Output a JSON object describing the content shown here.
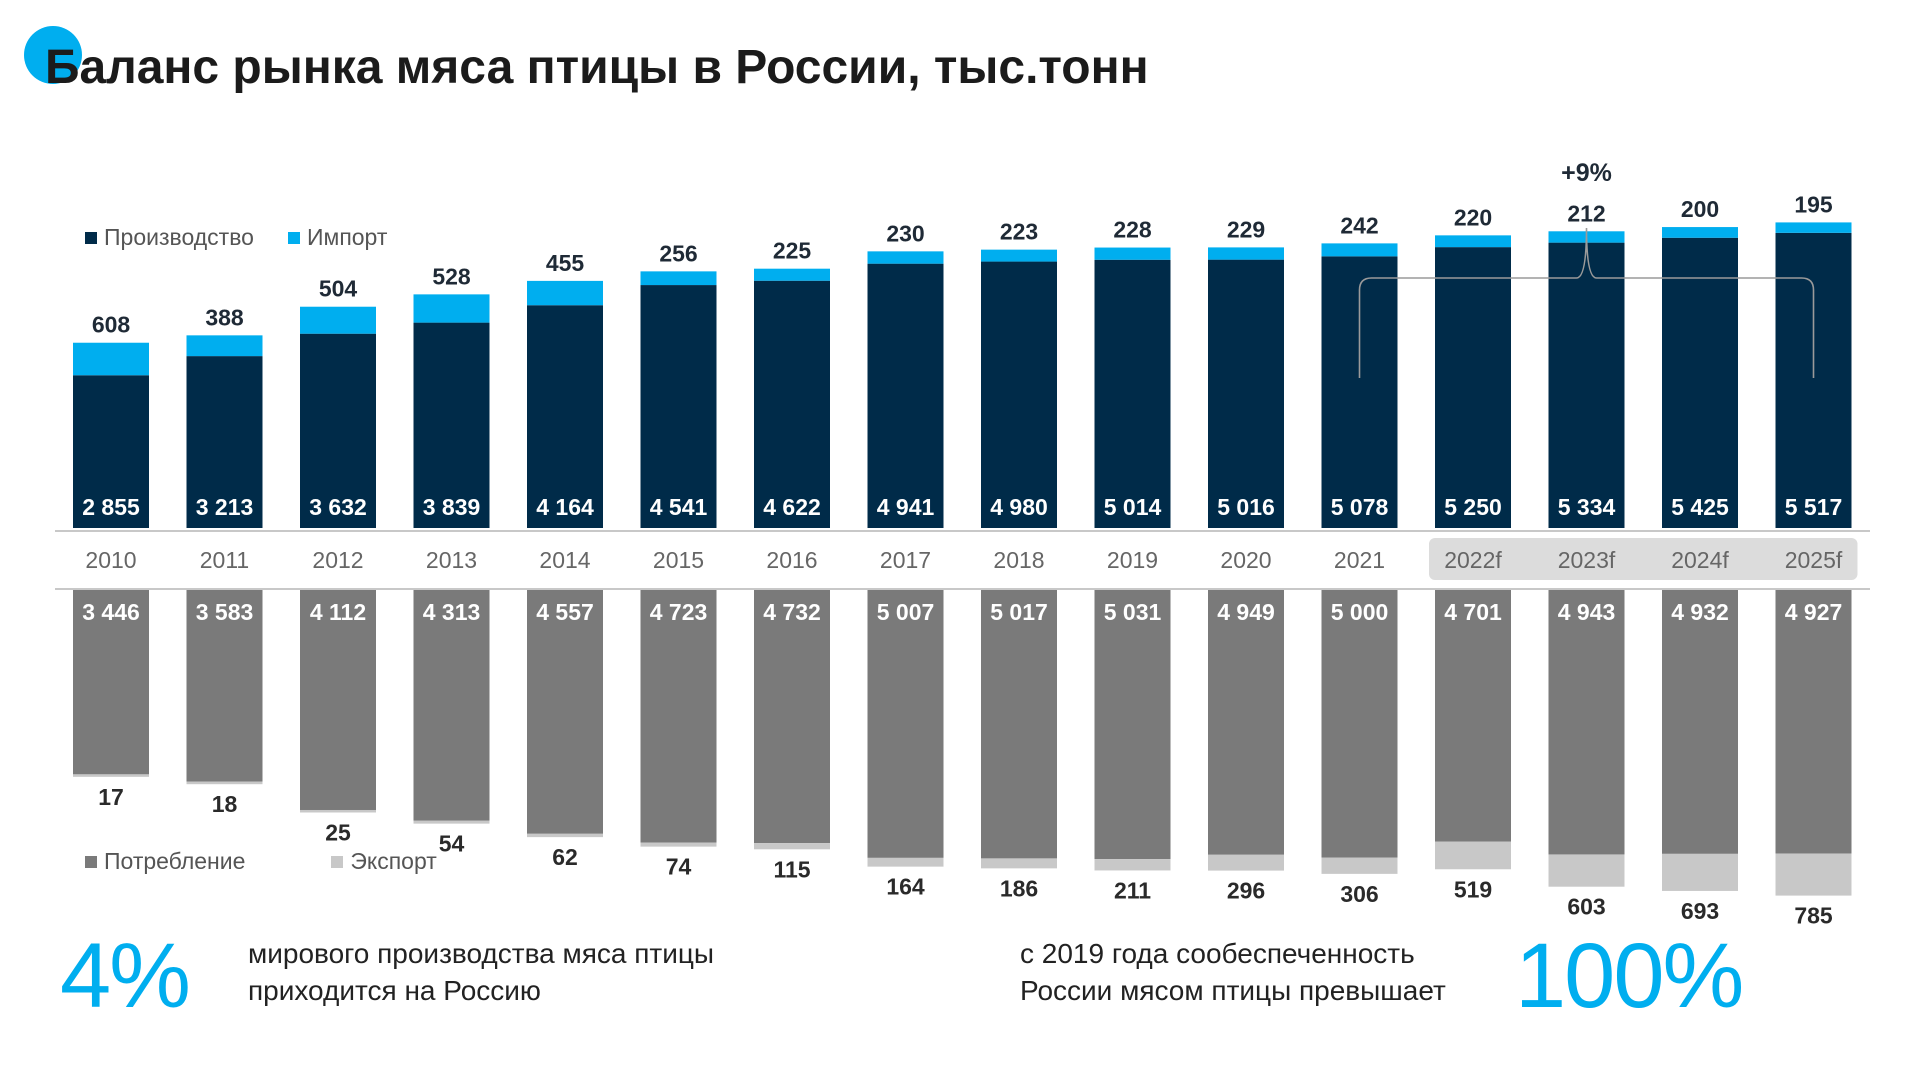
{
  "title": "Баланс рынка мяса птицы в России, тыс.тонн",
  "colors": {
    "production": "#002B49",
    "import": "#00AEEF",
    "consumption": "#7A7A7A",
    "export": "#C8C8C8",
    "forecast_bg": "#DCDCDC",
    "accent": "#00AEEF"
  },
  "legend_top": {
    "production": "Производство",
    "import": "Импорт"
  },
  "legend_bottom": {
    "consumption": "Потребление",
    "export": "Экспорт"
  },
  "chart_data": {
    "type": "bar",
    "categories": [
      "2010",
      "2011",
      "2012",
      "2013",
      "2014",
      "2015",
      "2016",
      "2017",
      "2018",
      "2019",
      "2020",
      "2021",
      "2022f",
      "2023f",
      "2024f",
      "2025f"
    ],
    "forecast_categories": [
      "2022f",
      "2023f",
      "2024f",
      "2025f"
    ],
    "series": [
      {
        "name": "Производство",
        "values": [
          2855,
          3213,
          3632,
          3839,
          4164,
          4541,
          4622,
          4941,
          4980,
          5014,
          5016,
          5078,
          5250,
          5334,
          5425,
          5517
        ]
      },
      {
        "name": "Импорт",
        "values": [
          608,
          388,
          504,
          528,
          455,
          256,
          225,
          230,
          223,
          228,
          229,
          242,
          220,
          212,
          200,
          195
        ]
      },
      {
        "name": "Потребление",
        "values": [
          3446,
          3583,
          4112,
          4313,
          4557,
          4723,
          4732,
          5007,
          5017,
          5031,
          4949,
          5000,
          4701,
          4943,
          4932,
          4927
        ]
      },
      {
        "name": "Экспорт",
        "values": [
          17,
          18,
          25,
          54,
          62,
          74,
          115,
          164,
          186,
          211,
          296,
          306,
          519,
          603,
          693,
          785
        ]
      }
    ],
    "labels": {
      "production": [
        "2 855",
        "3 213",
        "3 632",
        "3 839",
        "4 164",
        "4 541",
        "4 622",
        "4 941",
        "4 980",
        "5 014",
        "5 016",
        "5 078",
        "5 250",
        "5 334",
        "5 425",
        "5 517"
      ],
      "import": [
        "608",
        "388",
        "504",
        "528",
        "455",
        "256",
        "225",
        "230",
        "223",
        "228",
        "229",
        "242",
        "220",
        "212",
        "200",
        "195"
      ],
      "consumption": [
        "3 446",
        "3 583",
        "4 112",
        "4 313",
        "4 557",
        "4 723",
        "4 732",
        "5 007",
        "5 017",
        "5 031",
        "4 949",
        "5 000",
        "4 701",
        "4 943",
        "4 932",
        "4 927"
      ],
      "export": [
        "17",
        "18",
        "25",
        "54",
        "62",
        "74",
        "115",
        "164",
        "186",
        "211",
        "296",
        "306",
        "519",
        "603",
        "693",
        "785"
      ]
    },
    "annotation": {
      "text": "+9%",
      "from": "2021",
      "to": "2025f"
    }
  },
  "stats": {
    "left": {
      "value": "4%",
      "line1": "мирового производства мяса птицы",
      "line2": "приходится на Россию"
    },
    "right": {
      "line1": "с 2019 года сообеспеченность",
      "line2": "России мясом птицы превышает",
      "value": "100%"
    }
  }
}
